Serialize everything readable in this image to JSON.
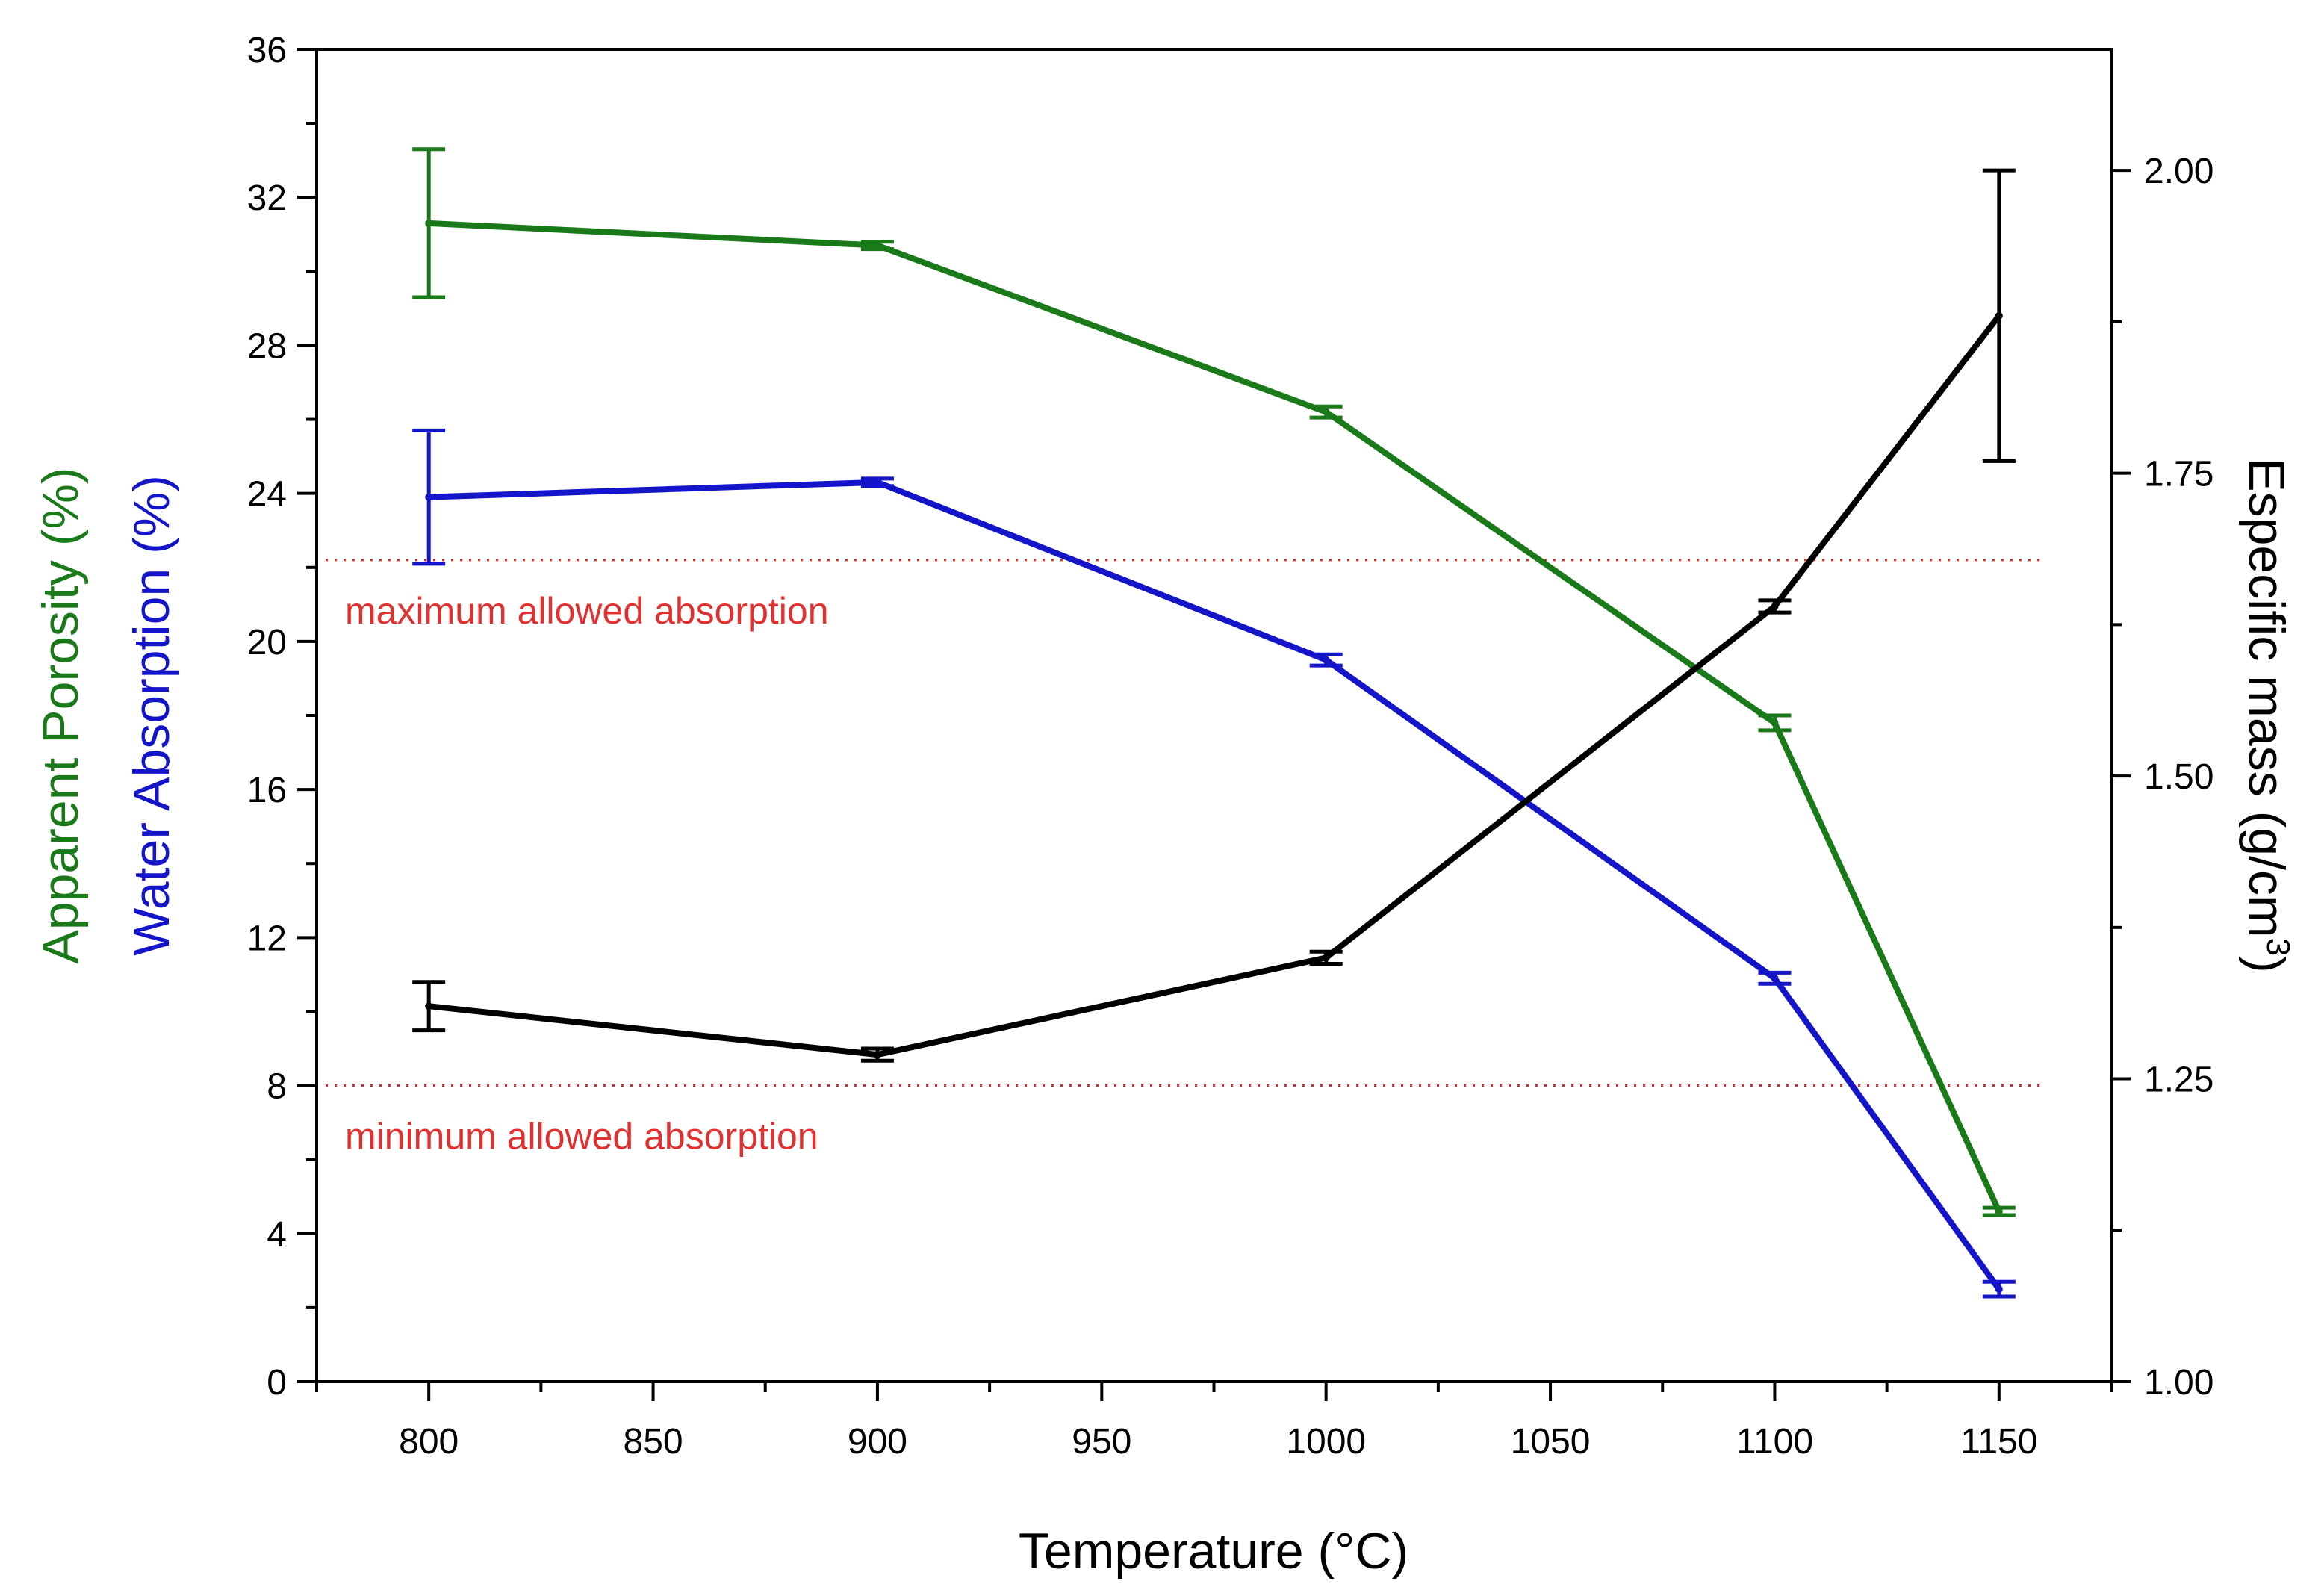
{
  "chart_data": {
    "type": "line",
    "x": [
      800,
      900,
      1000,
      1100,
      1150
    ],
    "xlabel": "Temperature (°C)",
    "xlim": [
      775,
      1175
    ],
    "xticks": [
      800,
      850,
      900,
      950,
      1000,
      1050,
      1100,
      1150
    ],
    "xtick_labels": [
      "800",
      "850",
      "900",
      "950",
      "1000",
      "1050",
      "1100",
      "1150"
    ],
    "ylabel_left_1": "Apparent Porosity (%)",
    "ylabel_left_2": "Water Absorption (%)",
    "ylim_left": [
      0,
      36
    ],
    "yticks_left": [
      0,
      4,
      8,
      12,
      16,
      20,
      24,
      28,
      32,
      36
    ],
    "ytick_labels_left": [
      "0",
      "4",
      "8",
      "12",
      "16",
      "20",
      "24",
      "28",
      "32",
      "36"
    ],
    "ylabel_right_main": "Especific mass (g/cm",
    "ylabel_right_sup": "3",
    "ylabel_right_end": ")",
    "ylim_right": [
      1.0,
      2.1
    ],
    "yticks_right": [
      1.0,
      1.25,
      1.5,
      1.75,
      2.0
    ],
    "ytick_labels_right": [
      "1.00",
      "1.25",
      "1.50",
      "1.75",
      "2.00"
    ],
    "series": [
      {
        "axis": "left",
        "color": "#1a7a1a",
        "values": [
          31.3,
          30.7,
          26.2,
          17.8,
          4.6
        ],
        "errors": [
          2.0,
          0.1,
          0.15,
          0.2,
          0.1
        ]
      },
      {
        "axis": "left",
        "color": "#1414c8",
        "values": [
          23.9,
          24.3,
          19.5,
          10.9,
          2.5
        ],
        "errors": [
          1.8,
          0.1,
          0.15,
          0.15,
          0.2
        ]
      },
      {
        "axis": "right",
        "color": "#000000",
        "values": [
          1.31,
          1.27,
          1.35,
          1.64,
          1.88
        ],
        "errors": [
          0.02,
          0.005,
          0.005,
          0.005,
          0.12
        ]
      }
    ],
    "reference_lines": [
      {
        "axis": "left",
        "y": 22.2,
        "label": "maximum allowed absorption",
        "color": "#e03030"
      },
      {
        "axis": "left",
        "y": 8.0,
        "label": "minimum allowed absorption",
        "color": "#e03030"
      }
    ],
    "grid": false,
    "legend": "none"
  }
}
